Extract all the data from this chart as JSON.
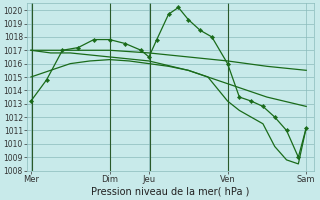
{
  "background_color": "#c8eaea",
  "grid_color": "#8bbcbc",
  "line_color": "#1a6b1a",
  "marker_color": "#1a6b1a",
  "xlabel": "Pression niveau de la mer( hPa )",
  "ylim": [
    1008,
    1020.5
  ],
  "ytick_min": 1008,
  "ytick_max": 1020,
  "vline_color": "#2a5a2a",
  "series": [
    {
      "x": [
        0.0,
        0.4,
        0.8,
        1.2,
        1.6,
        2.0,
        2.4,
        2.8,
        3.0,
        3.2,
        3.5,
        3.75,
        4.0,
        4.3,
        4.6,
        5.0,
        5.3,
        5.6,
        5.9,
        6.2,
        6.5,
        6.8,
        7.0
      ],
      "y": [
        1013.2,
        1014.8,
        1017.0,
        1017.2,
        1017.8,
        1017.8,
        1017.5,
        1017.0,
        1016.5,
        1017.8,
        1019.7,
        1020.2,
        1019.3,
        1018.5,
        1018.0,
        1016.0,
        1013.5,
        1013.2,
        1012.8,
        1012.0,
        1011.0,
        1009.0,
        1011.2
      ],
      "marker": true
    },
    {
      "x": [
        0.0,
        1.0,
        2.0,
        3.0,
        4.0,
        5.0,
        6.0,
        7.0
      ],
      "y": [
        1017.0,
        1017.0,
        1017.0,
        1016.8,
        1016.5,
        1016.2,
        1015.8,
        1015.5
      ],
      "marker": false
    },
    {
      "x": [
        0.0,
        0.5,
        1.0,
        2.0,
        3.0,
        4.0,
        5.0,
        6.0,
        7.0
      ],
      "y": [
        1017.0,
        1016.8,
        1016.8,
        1016.5,
        1016.2,
        1015.5,
        1014.5,
        1013.5,
        1012.8
      ],
      "marker": false
    },
    {
      "x": [
        0.0,
        0.5,
        1.0,
        1.5,
        2.0,
        2.5,
        3.0,
        3.5,
        4.0,
        4.5,
        5.0,
        5.3,
        5.6,
        5.9,
        6.2,
        6.5,
        6.8,
        7.0
      ],
      "y": [
        1015.0,
        1015.5,
        1016.0,
        1016.2,
        1016.3,
        1016.2,
        1016.0,
        1015.8,
        1015.5,
        1015.0,
        1013.2,
        1012.5,
        1012.0,
        1011.5,
        1009.8,
        1008.8,
        1008.5,
        1011.2
      ],
      "marker": false
    }
  ],
  "vlines_x": [
    0.02,
    2.02,
    3.02,
    5.02
  ],
  "xtick_positions": [
    0.0,
    2.0,
    3.0,
    5.0,
    7.0
  ],
  "xtick_labels": [
    "Mer",
    "Dim",
    "Jeu",
    "Ven",
    "Sam"
  ]
}
